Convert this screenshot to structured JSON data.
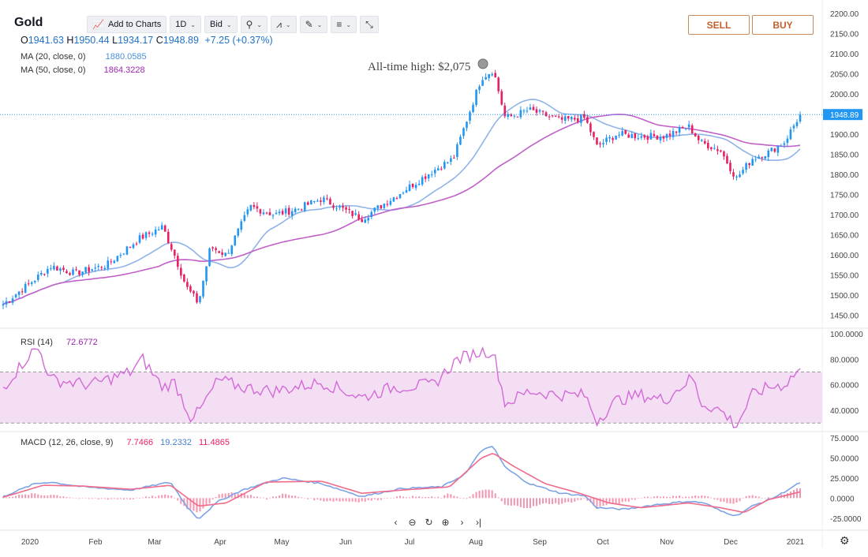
{
  "symbol": "Gold",
  "ohlc": {
    "o_label": "O",
    "o": "1941.63",
    "h_label": "H",
    "h": "1950.44",
    "l_label": "L",
    "l": "1934.17",
    "c_label": "C",
    "c": "1948.89",
    "change": "+7.25 (+0.37%)"
  },
  "toolbar": {
    "add_to_charts": "Add to Charts",
    "interval": "1D",
    "price_side": "Bid"
  },
  "trade": {
    "sell": "SELL",
    "buy": "BUY"
  },
  "indicators": {
    "ma20": {
      "label": "MA (20, close, 0)",
      "value": "1880.0585",
      "color": "#4a90d9"
    },
    "ma50": {
      "label": "MA (50, close, 0)",
      "value": "1864.3228",
      "color": "#9c27b0"
    },
    "rsi": {
      "label": "RSI (14)",
      "value": "72.6772",
      "color": "#9c27b0"
    },
    "macd": {
      "label": "MACD (12, 26, close, 9)",
      "v1": "7.7466",
      "v2": "19.2332",
      "v3": "11.4865"
    }
  },
  "annotation": "All-time high: $2,075",
  "last_price_label": "1948.89",
  "colors": {
    "up": "#2196f3",
    "down": "#e91e63",
    "ma20": "#8fb3e8",
    "ma50": "#c060c8",
    "rsi": "#d46ad8",
    "rsi_band": "#f3def3",
    "macd_line": "#7da3e6",
    "signal_line": "#f06a8a"
  },
  "chart_data": {
    "type": "candlestick",
    "x_ticks": [
      "2020",
      "Feb",
      "Mar",
      "Apr",
      "May",
      "Jun",
      "Jul",
      "Aug",
      "Sep",
      "Oct",
      "Nov",
      "Dec",
      "2021"
    ],
    "price_axis": {
      "ticks": [
        1450,
        1500,
        1550,
        1600,
        1650,
        1700,
        1750,
        1800,
        1850,
        1900,
        1950,
        2000,
        2050,
        2100,
        2150,
        2200
      ],
      "ylim": [
        1420,
        2210
      ]
    },
    "rsi_axis": {
      "ticks": [
        "40.0000",
        "60.0000",
        "80.0000",
        "100.0000"
      ],
      "ylim": [
        24,
        103
      ],
      "band": [
        30,
        70
      ]
    },
    "macd_axis": {
      "ticks": [
        "-25.0000",
        "0.0000",
        "25.0000",
        "50.0000",
        "75.0000"
      ],
      "ylim": [
        -38,
        80
      ]
    },
    "close_path": [
      [
        0,
        1478
      ],
      [
        0.04,
        1540
      ],
      [
        0.06,
        1572
      ],
      [
        0.09,
        1555
      ],
      [
        0.13,
        1575
      ],
      [
        0.17,
        1640
      ],
      [
        0.2,
        1670
      ],
      [
        0.215,
        1600
      ],
      [
        0.23,
        1520
      ],
      [
        0.245,
        1480
      ],
      [
        0.26,
        1620
      ],
      [
        0.28,
        1600
      ],
      [
        0.31,
        1720
      ],
      [
        0.34,
        1700
      ],
      [
        0.37,
        1715
      ],
      [
        0.4,
        1740
      ],
      [
        0.43,
        1710
      ],
      [
        0.45,
        1690
      ],
      [
        0.48,
        1730
      ],
      [
        0.51,
        1770
      ],
      [
        0.54,
        1810
      ],
      [
        0.565,
        1840
      ],
      [
        0.6,
        2040
      ],
      [
        0.615,
        2060
      ],
      [
        0.63,
        1940
      ],
      [
        0.66,
        1960
      ],
      [
        0.7,
        1935
      ],
      [
        0.73,
        1940
      ],
      [
        0.745,
        1870
      ],
      [
        0.77,
        1900
      ],
      [
        0.8,
        1895
      ],
      [
        0.83,
        1895
      ],
      [
        0.86,
        1920
      ],
      [
        0.875,
        1880
      ],
      [
        0.9,
        1860
      ],
      [
        0.92,
        1790
      ],
      [
        0.94,
        1840
      ],
      [
        0.96,
        1855
      ],
      [
        0.98,
        1880
      ],
      [
        1.0,
        1948.89
      ]
    ],
    "rsi_path": [
      [
        0,
        58
      ],
      [
        0.035,
        85
      ],
      [
        0.045,
        88
      ],
      [
        0.06,
        64
      ],
      [
        0.11,
        60
      ],
      [
        0.16,
        70
      ],
      [
        0.175,
        80
      ],
      [
        0.2,
        58
      ],
      [
        0.215,
        62
      ],
      [
        0.235,
        35
      ],
      [
        0.245,
        38
      ],
      [
        0.27,
        64
      ],
      [
        0.3,
        58
      ],
      [
        0.34,
        55
      ],
      [
        0.4,
        62
      ],
      [
        0.45,
        50
      ],
      [
        0.49,
        58
      ],
      [
        0.54,
        60
      ],
      [
        0.57,
        80
      ],
      [
        0.6,
        86
      ],
      [
        0.615,
        86
      ],
      [
        0.63,
        45
      ],
      [
        0.66,
        55
      ],
      [
        0.7,
        52
      ],
      [
        0.73,
        52
      ],
      [
        0.745,
        32
      ],
      [
        0.77,
        48
      ],
      [
        0.8,
        52
      ],
      [
        0.83,
        48
      ],
      [
        0.865,
        66
      ],
      [
        0.875,
        46
      ],
      [
        0.9,
        40
      ],
      [
        0.92,
        28
      ],
      [
        0.94,
        52
      ],
      [
        0.96,
        58
      ],
      [
        0.98,
        60
      ],
      [
        1.0,
        72.68
      ]
    ],
    "macd_path": [
      [
        0,
        2
      ],
      [
        0.04,
        18
      ],
      [
        0.06,
        20
      ],
      [
        0.1,
        14
      ],
      [
        0.16,
        10
      ],
      [
        0.21,
        20
      ],
      [
        0.23,
        -10
      ],
      [
        0.245,
        -26
      ],
      [
        0.27,
        -4
      ],
      [
        0.3,
        10
      ],
      [
        0.35,
        25
      ],
      [
        0.4,
        18
      ],
      [
        0.45,
        2
      ],
      [
        0.5,
        12
      ],
      [
        0.55,
        14
      ],
      [
        0.58,
        30
      ],
      [
        0.6,
        60
      ],
      [
        0.615,
        64
      ],
      [
        0.63,
        38
      ],
      [
        0.66,
        18
      ],
      [
        0.7,
        6
      ],
      [
        0.73,
        3
      ],
      [
        0.745,
        -12
      ],
      [
        0.78,
        -14
      ],
      [
        0.82,
        -8
      ],
      [
        0.86,
        -4
      ],
      [
        0.88,
        -6
      ],
      [
        0.9,
        -16
      ],
      [
        0.92,
        -22
      ],
      [
        0.94,
        -10
      ],
      [
        0.97,
        2
      ],
      [
        1.0,
        19.23
      ]
    ],
    "signal_path": [
      [
        0,
        1
      ],
      [
        0.05,
        16
      ],
      [
        0.1,
        15
      ],
      [
        0.16,
        11
      ],
      [
        0.21,
        16
      ],
      [
        0.245,
        -10
      ],
      [
        0.28,
        -6
      ],
      [
        0.33,
        20
      ],
      [
        0.4,
        21
      ],
      [
        0.45,
        6
      ],
      [
        0.5,
        10
      ],
      [
        0.56,
        14
      ],
      [
        0.6,
        50
      ],
      [
        0.615,
        56
      ],
      [
        0.64,
        40
      ],
      [
        0.68,
        18
      ],
      [
        0.72,
        7
      ],
      [
        0.76,
        -6
      ],
      [
        0.8,
        -12
      ],
      [
        0.86,
        -6
      ],
      [
        0.9,
        -12
      ],
      [
        0.93,
        -18
      ],
      [
        0.96,
        -2
      ],
      [
        1.0,
        7.75
      ]
    ]
  }
}
